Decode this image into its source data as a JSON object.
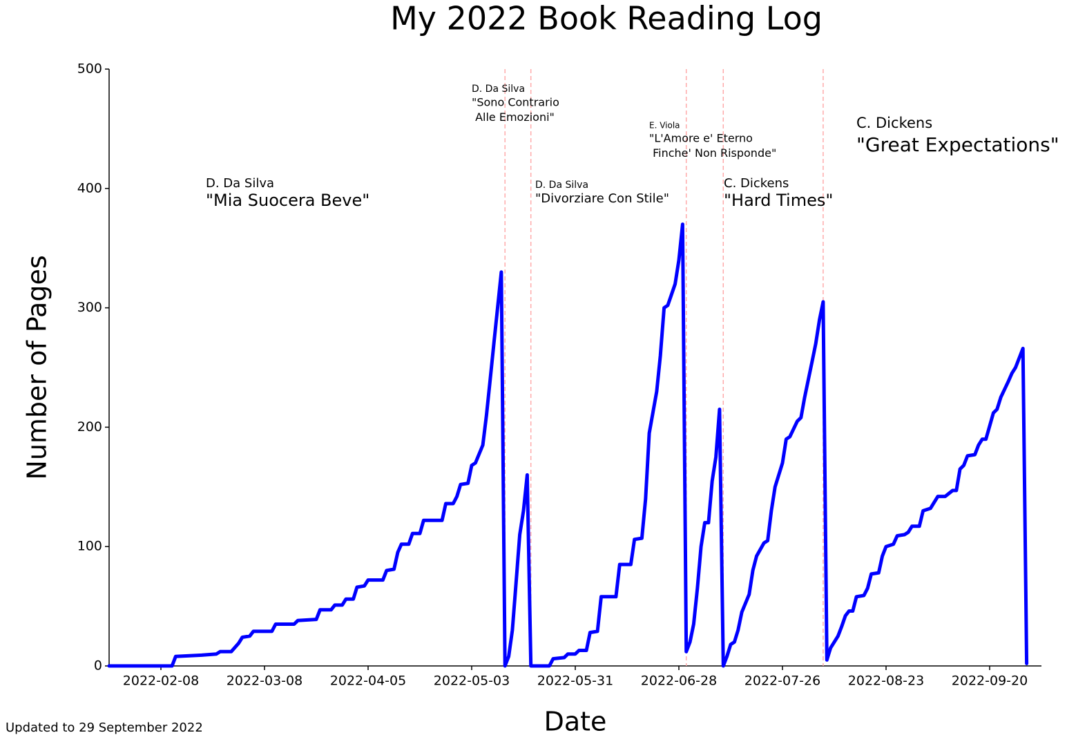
{
  "chart_data": {
    "type": "line",
    "title": "My 2022 Book Reading Log",
    "x_label": "Date",
    "y_label": "Number of Pages",
    "footnote": "Updated to 29 September 2022",
    "color": "#0000ff",
    "boundary_color": "#ffaaaa",
    "xlim": [
      "2022-01-25",
      "2022-10-04"
    ],
    "xticks": [
      "2022-02-08",
      "2022-03-08",
      "2022-04-05",
      "2022-05-03",
      "2022-05-31",
      "2022-06-28",
      "2022-07-26",
      "2022-08-23",
      "2022-09-20"
    ],
    "ylim": [
      0,
      500
    ],
    "yticks": [
      0,
      100,
      200,
      300,
      400,
      500
    ],
    "book_boundaries": [
      "2022-05-12",
      "2022-05-19",
      "2022-06-30",
      "2022-07-10",
      "2022-08-06"
    ],
    "annotations": [
      {
        "author": "D. Da Silva",
        "title": [
          "\"Mia Suocera Beve\""
        ]
      },
      {
        "author": "D. Da Silva",
        "title": [
          "\"Sono Contrario",
          " Alle Emozioni\""
        ]
      },
      {
        "author": "D. Da Silva",
        "title": [
          "\"Divorziare Con Stile\""
        ]
      },
      {
        "author": "E. Viola",
        "title": [
          "\"L'Amore e' Eterno",
          " Finche' Non Risponde\""
        ]
      },
      {
        "author": "C. Dickens",
        "title": [
          "\"Hard Times\""
        ]
      },
      {
        "author": "C. Dickens",
        "title": [
          "\"Great Expectations\""
        ]
      }
    ],
    "x": [
      "2022-01-25",
      "2022-02-11",
      "2022-02-12",
      "2022-02-19",
      "2022-02-23",
      "2022-02-24",
      "2022-02-27",
      "2022-03-01",
      "2022-03-02",
      "2022-03-04",
      "2022-03-05",
      "2022-03-10",
      "2022-03-11",
      "2022-03-16",
      "2022-03-17",
      "2022-03-22",
      "2022-03-23",
      "2022-03-26",
      "2022-03-27",
      "2022-03-29",
      "2022-03-30",
      "2022-04-01",
      "2022-04-02",
      "2022-04-04",
      "2022-04-05",
      "2022-04-09",
      "2022-04-10",
      "2022-04-12",
      "2022-04-13",
      "2022-04-14",
      "2022-04-16",
      "2022-04-17",
      "2022-04-19",
      "2022-04-20",
      "2022-04-25",
      "2022-04-26",
      "2022-04-28",
      "2022-04-29",
      "2022-04-30",
      "2022-05-02",
      "2022-05-03",
      "2022-05-04",
      "2022-05-06",
      "2022-05-07",
      "2022-05-08",
      "2022-05-09",
      "2022-05-10",
      "2022-05-11",
      "2022-05-12",
      "2022-05-13",
      "2022-05-14",
      "2022-05-15",
      "2022-05-16",
      "2022-05-17",
      "2022-05-18",
      "2022-05-19",
      "2022-05-24",
      "2022-05-25",
      "2022-05-28",
      "2022-05-29",
      "2022-05-31",
      "2022-06-01",
      "2022-06-03",
      "2022-06-04",
      "2022-06-06",
      "2022-06-07",
      "2022-06-11",
      "2022-06-12",
      "2022-06-15",
      "2022-06-16",
      "2022-06-18",
      "2022-06-19",
      "2022-06-20",
      "2022-06-22",
      "2022-06-23",
      "2022-06-24",
      "2022-06-25",
      "2022-06-27",
      "2022-06-28",
      "2022-06-29",
      "2022-06-30",
      "2022-07-01",
      "2022-07-02",
      "2022-07-03",
      "2022-07-04",
      "2022-07-05",
      "2022-07-06",
      "2022-07-07",
      "2022-07-08",
      "2022-07-09",
      "2022-07-10",
      "2022-07-11",
      "2022-07-12",
      "2022-07-13",
      "2022-07-14",
      "2022-07-15",
      "2022-07-17",
      "2022-07-18",
      "2022-07-19",
      "2022-07-21",
      "2022-07-22",
      "2022-07-23",
      "2022-07-24",
      "2022-07-26",
      "2022-07-27",
      "2022-07-28",
      "2022-07-30",
      "2022-07-31",
      "2022-08-01",
      "2022-08-02",
      "2022-08-03",
      "2022-08-04",
      "2022-08-05",
      "2022-08-06",
      "2022-08-07",
      "2022-08-08",
      "2022-08-10",
      "2022-08-11",
      "2022-08-12",
      "2022-08-13",
      "2022-08-14",
      "2022-08-15",
      "2022-08-17",
      "2022-08-18",
      "2022-08-19",
      "2022-08-21",
      "2022-08-22",
      "2022-08-23",
      "2022-08-25",
      "2022-08-26",
      "2022-08-28",
      "2022-08-29",
      "2022-08-30",
      "2022-09-01",
      "2022-09-02",
      "2022-09-04",
      "2022-09-05",
      "2022-09-06",
      "2022-09-08",
      "2022-09-10",
      "2022-09-11",
      "2022-09-12",
      "2022-09-13",
      "2022-09-14",
      "2022-09-16",
      "2022-09-17",
      "2022-09-18",
      "2022-09-19",
      "2022-09-21",
      "2022-09-22",
      "2022-09-23",
      "2022-09-25",
      "2022-09-26",
      "2022-09-27",
      "2022-09-29",
      "2022-09-30"
    ],
    "values": [
      0,
      0,
      8,
      9,
      10,
      12,
      12,
      19,
      24,
      25,
      29,
      29,
      35,
      35,
      38,
      39,
      47,
      47,
      51,
      51,
      56,
      56,
      66,
      67,
      72,
      72,
      80,
      81,
      95,
      102,
      102,
      111,
      111,
      122,
      122,
      136,
      136,
      142,
      152,
      153,
      168,
      170,
      185,
      210,
      240,
      270,
      300,
      330,
      0,
      8,
      30,
      70,
      110,
      130,
      160,
      0,
      0,
      6,
      7,
      10,
      10,
      13,
      13,
      28,
      29,
      58,
      58,
      85,
      85,
      106,
      107,
      140,
      195,
      230,
      260,
      300,
      302,
      320,
      340,
      370,
      12,
      20,
      35,
      65,
      100,
      120,
      120,
      155,
      175,
      215,
      0,
      8,
      18,
      20,
      30,
      45,
      60,
      80,
      92,
      103,
      105,
      130,
      150,
      170,
      190,
      192,
      205,
      208,
      225,
      240,
      255,
      270,
      290,
      305,
      5,
      15,
      25,
      33,
      42,
      46,
      46,
      58,
      59,
      65,
      77,
      78,
      92,
      100,
      102,
      109,
      110,
      112,
      117,
      117,
      130,
      132,
      137,
      142,
      142,
      147,
      147,
      165,
      168,
      176,
      177,
      185,
      190,
      190,
      212,
      215,
      225,
      238,
      245,
      250,
      266,
      2
    ]
  }
}
